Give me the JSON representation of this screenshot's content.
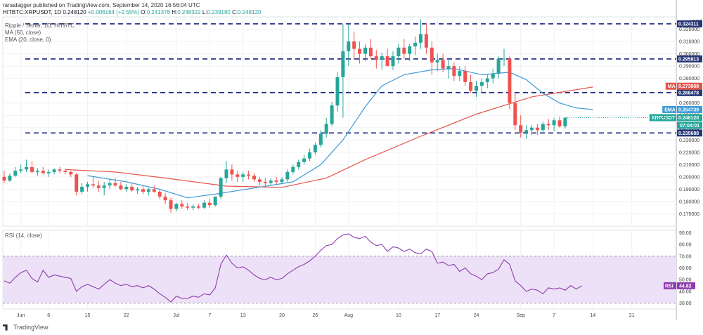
{
  "header": {
    "published": "ranadagger published on TradingView.com, September 14, 2020 16:56:04 UTC",
    "symbol": "HITBTC:XRPUSDT, 1D",
    "price": "0.248120",
    "change": "+0.006164 (+2.55%)",
    "o_label": "O:",
    "o": "0.241378",
    "h_label": "H:",
    "h": "0.248322",
    "l_label": "L:",
    "l": "0.239180",
    "c_label": "C:",
    "c": "0.248120"
  },
  "legends": {
    "title": "Ripple / Tether, 1D, HITBTC",
    "ma": "MA (50, close)",
    "ema": "EMA (20, close, 0)",
    "rsi": "RSI (14, close)"
  },
  "branding": {
    "logo_text": "TradingView"
  },
  "colors": {
    "up": "#26a69a",
    "down": "#ef5350",
    "ma": "#e5544b",
    "ema": "#3b9ad9",
    "rsi": "#8e3cae",
    "rsi_band": "#ede1f7",
    "level_line": "#1a237e",
    "tag_dark": "#263778"
  },
  "chart_data": [
    {
      "type": "candlestick",
      "title": "Ripple / Tether, 1D, HITBTC",
      "ylabel": "USDT",
      "ylim": [
        0.16,
        0.33
      ],
      "grid": true,
      "y_ticks": [
        "0.170000",
        "0.180000",
        "0.190000",
        "0.200000",
        "0.210000",
        "0.220000",
        "0.230000",
        "0.240000",
        "0.250000",
        "0.260000",
        "0.280000",
        "0.290000",
        "0.300000",
        "0.310000",
        "0.320000"
      ],
      "x_ticks": [
        {
          "label": "Jun",
          "day": 3
        },
        {
          "label": "8",
          "day": 8
        },
        {
          "label": "15",
          "day": 15
        },
        {
          "label": "22",
          "day": 22
        },
        {
          "label": "Jul",
          "day": 31
        },
        {
          "label": "7",
          "day": 37
        },
        {
          "label": "13",
          "day": 43
        },
        {
          "label": "20",
          "day": 50
        },
        {
          "label": "26",
          "day": 56
        },
        {
          "label": "Aug",
          "day": 62
        },
        {
          "label": "10",
          "day": 71
        },
        {
          "label": "17",
          "day": 78
        },
        {
          "label": "24",
          "day": 85
        },
        {
          "label": "Sep",
          "day": 93
        },
        {
          "label": "7",
          "day": 99
        },
        {
          "label": "14",
          "day": 106
        },
        {
          "label": "21",
          "day": 113
        }
      ],
      "candles": [
        [
          0.2,
          0.205,
          0.195,
          0.197
        ],
        [
          0.197,
          0.203,
          0.196,
          0.201
        ],
        [
          0.201,
          0.208,
          0.2,
          0.205
        ],
        [
          0.205,
          0.21,
          0.203,
          0.206
        ],
        [
          0.206,
          0.214,
          0.204,
          0.208
        ],
        [
          0.208,
          0.213,
          0.203,
          0.204
        ],
        [
          0.204,
          0.207,
          0.201,
          0.205
        ],
        [
          0.205,
          0.208,
          0.202,
          0.203
        ],
        [
          0.203,
          0.206,
          0.2,
          0.204
        ],
        [
          0.204,
          0.207,
          0.202,
          0.206
        ],
        [
          0.206,
          0.208,
          0.203,
          0.205
        ],
        [
          0.205,
          0.206,
          0.202,
          0.204
        ],
        [
          0.204,
          0.205,
          0.2,
          0.202
        ],
        [
          0.202,
          0.203,
          0.185,
          0.188
        ],
        [
          0.188,
          0.195,
          0.186,
          0.192
        ],
        [
          0.192,
          0.196,
          0.188,
          0.194
        ],
        [
          0.194,
          0.2,
          0.191,
          0.193
        ],
        [
          0.193,
          0.197,
          0.188,
          0.191
        ],
        [
          0.191,
          0.196,
          0.185,
          0.193
        ],
        [
          0.193,
          0.198,
          0.19,
          0.195
        ],
        [
          0.195,
          0.199,
          0.192,
          0.193
        ],
        [
          0.193,
          0.196,
          0.189,
          0.19
        ],
        [
          0.19,
          0.194,
          0.188,
          0.192
        ],
        [
          0.192,
          0.195,
          0.188,
          0.189
        ],
        [
          0.189,
          0.192,
          0.186,
          0.19
        ],
        [
          0.19,
          0.193,
          0.186,
          0.188
        ],
        [
          0.188,
          0.191,
          0.185,
          0.19
        ],
        [
          0.19,
          0.193,
          0.187,
          0.188
        ],
        [
          0.188,
          0.19,
          0.182,
          0.184
        ],
        [
          0.184,
          0.187,
          0.178,
          0.181
        ],
        [
          0.181,
          0.183,
          0.171,
          0.174
        ],
        [
          0.174,
          0.179,
          0.172,
          0.178
        ],
        [
          0.178,
          0.181,
          0.174,
          0.176
        ],
        [
          0.176,
          0.179,
          0.173,
          0.175
        ],
        [
          0.175,
          0.178,
          0.173,
          0.176
        ],
        [
          0.176,
          0.178,
          0.174,
          0.175
        ],
        [
          0.175,
          0.181,
          0.174,
          0.179
        ],
        [
          0.179,
          0.182,
          0.175,
          0.177
        ],
        [
          0.177,
          0.184,
          0.176,
          0.184
        ],
        [
          0.184,
          0.2,
          0.182,
          0.199
        ],
        [
          0.199,
          0.213,
          0.195,
          0.206
        ],
        [
          0.206,
          0.21,
          0.197,
          0.202
        ],
        [
          0.202,
          0.205,
          0.196,
          0.2
        ],
        [
          0.2,
          0.204,
          0.196,
          0.202
        ],
        [
          0.202,
          0.205,
          0.198,
          0.201
        ],
        [
          0.201,
          0.203,
          0.196,
          0.198
        ],
        [
          0.198,
          0.2,
          0.193,
          0.196
        ],
        [
          0.196,
          0.199,
          0.192,
          0.195
        ],
        [
          0.195,
          0.199,
          0.193,
          0.197
        ],
        [
          0.197,
          0.2,
          0.194,
          0.196
        ],
        [
          0.196,
          0.2,
          0.194,
          0.198
        ],
        [
          0.198,
          0.206,
          0.196,
          0.204
        ],
        [
          0.204,
          0.21,
          0.202,
          0.208
        ],
        [
          0.208,
          0.214,
          0.206,
          0.212
        ],
        [
          0.212,
          0.218,
          0.21,
          0.215
        ],
        [
          0.215,
          0.223,
          0.213,
          0.22
        ],
        [
          0.22,
          0.228,
          0.218,
          0.226
        ],
        [
          0.226,
          0.238,
          0.224,
          0.235
        ],
        [
          0.235,
          0.248,
          0.232,
          0.243
        ],
        [
          0.243,
          0.261,
          0.241,
          0.258
        ],
        [
          0.258,
          0.285,
          0.253,
          0.281
        ],
        [
          0.281,
          0.324,
          0.248,
          0.302
        ],
        [
          0.302,
          0.324,
          0.29,
          0.31
        ],
        [
          0.31,
          0.318,
          0.295,
          0.304
        ],
        [
          0.304,
          0.31,
          0.292,
          0.3
        ],
        [
          0.3,
          0.308,
          0.294,
          0.305
        ],
        [
          0.305,
          0.312,
          0.296,
          0.298
        ],
        [
          0.298,
          0.303,
          0.288,
          0.295
        ],
        [
          0.295,
          0.301,
          0.287,
          0.298
        ],
        [
          0.298,
          0.304,
          0.29,
          0.29
        ],
        [
          0.29,
          0.302,
          0.287,
          0.298
        ],
        [
          0.298,
          0.308,
          0.292,
          0.305
        ],
        [
          0.305,
          0.312,
          0.296,
          0.3
        ],
        [
          0.3,
          0.308,
          0.294,
          0.306
        ],
        [
          0.306,
          0.314,
          0.299,
          0.309
        ],
        [
          0.309,
          0.328,
          0.304,
          0.316
        ],
        [
          0.316,
          0.325,
          0.3,
          0.305
        ],
        [
          0.305,
          0.31,
          0.283,
          0.293
        ],
        [
          0.293,
          0.3,
          0.286,
          0.295
        ],
        [
          0.295,
          0.3,
          0.285,
          0.288
        ],
        [
          0.288,
          0.295,
          0.28,
          0.29
        ],
        [
          0.29,
          0.293,
          0.278,
          0.282
        ],
        [
          0.282,
          0.29,
          0.278,
          0.286
        ],
        [
          0.286,
          0.29,
          0.274,
          0.277
        ],
        [
          0.277,
          0.283,
          0.268,
          0.27
        ],
        [
          0.27,
          0.278,
          0.265,
          0.274
        ],
        [
          0.274,
          0.28,
          0.268,
          0.277
        ],
        [
          0.277,
          0.283,
          0.272,
          0.28
        ],
        [
          0.28,
          0.288,
          0.276,
          0.284
        ],
        [
          0.284,
          0.298,
          0.28,
          0.296
        ],
        [
          0.296,
          0.304,
          0.29,
          0.296
        ],
        [
          0.296,
          0.298,
          0.255,
          0.26
        ],
        [
          0.26,
          0.268,
          0.238,
          0.242
        ],
        [
          0.242,
          0.25,
          0.232,
          0.236
        ],
        [
          0.236,
          0.242,
          0.231,
          0.238
        ],
        [
          0.238,
          0.242,
          0.234,
          0.24
        ],
        [
          0.24,
          0.243,
          0.234,
          0.238
        ],
        [
          0.238,
          0.245,
          0.235,
          0.243
        ],
        [
          0.243,
          0.247,
          0.238,
          0.242
        ],
        [
          0.242,
          0.248,
          0.237,
          0.246
        ],
        [
          0.246,
          0.249,
          0.24,
          0.241
        ],
        [
          0.241,
          0.2483,
          0.2392,
          0.2481
        ]
      ],
      "ma_50": [
        [
          11,
          0.206
        ],
        [
          20,
          0.204
        ],
        [
          30,
          0.1985
        ],
        [
          40,
          0.1925
        ],
        [
          50,
          0.1915
        ],
        [
          58,
          0.199
        ],
        [
          65,
          0.214
        ],
        [
          75,
          0.233
        ],
        [
          85,
          0.251
        ],
        [
          95,
          0.265
        ],
        [
          106,
          0.273
        ]
      ],
      "ema_20": [
        [
          15,
          0.201
        ],
        [
          22,
          0.196
        ],
        [
          28,
          0.19
        ],
        [
          33,
          0.183
        ],
        [
          38,
          0.186
        ],
        [
          45,
          0.191
        ],
        [
          52,
          0.196
        ],
        [
          57,
          0.21
        ],
        [
          61,
          0.23
        ],
        [
          65,
          0.257
        ],
        [
          68,
          0.274
        ],
        [
          72,
          0.283
        ],
        [
          77,
          0.287
        ],
        [
          81,
          0.288
        ],
        [
          86,
          0.283
        ],
        [
          91,
          0.285
        ],
        [
          94,
          0.279
        ],
        [
          97,
          0.268
        ],
        [
          100,
          0.26
        ],
        [
          103,
          0.256
        ],
        [
          106,
          0.2547
        ]
      ],
      "horizontal_levels": [
        {
          "value": 0.324311,
          "label": "0.324311"
        },
        {
          "value": 0.295813,
          "label": "0.295813"
        },
        {
          "value": 0.268478,
          "label": "0.268478"
        },
        {
          "value": 0.235688,
          "label": "0.235688"
        }
      ],
      "price_tags": [
        {
          "name": "MA",
          "value": 0.273668,
          "label": "0.273668"
        },
        {
          "name": "EMA",
          "value": 0.254739,
          "label": "0.254739"
        },
        {
          "name": "XRPUSDT",
          "value": 0.24812,
          "label": "0.248120",
          "sub_label": "07:04:01"
        }
      ]
    },
    {
      "type": "line",
      "title": "RSI (14, close)",
      "ylim": [
        25,
        92
      ],
      "y_ticks": [
        "30.00",
        "40.00",
        "50.00",
        "60.00",
        "70.00",
        "80.00",
        "90.00"
      ],
      "band": [
        30,
        70
      ],
      "rsi": [
        [
          0,
          49
        ],
        [
          1,
          47
        ],
        [
          2,
          52
        ],
        [
          3,
          56
        ],
        [
          4,
          58
        ],
        [
          5,
          51
        ],
        [
          6,
          48
        ],
        [
          7,
          58
        ],
        [
          8,
          52
        ],
        [
          9,
          54
        ],
        [
          10,
          53
        ],
        [
          11,
          52
        ],
        [
          12,
          51
        ],
        [
          13,
          40
        ],
        [
          14,
          44
        ],
        [
          15,
          46
        ],
        [
          16,
          44
        ],
        [
          17,
          42
        ],
        [
          18,
          46
        ],
        [
          19,
          50
        ],
        [
          20,
          47
        ],
        [
          21,
          45
        ],
        [
          22,
          46
        ],
        [
          23,
          44
        ],
        [
          24,
          45
        ],
        [
          25,
          43
        ],
        [
          26,
          45
        ],
        [
          27,
          42
        ],
        [
          28,
          38
        ],
        [
          29,
          35
        ],
        [
          30,
          31
        ],
        [
          31,
          36
        ],
        [
          32,
          34
        ],
        [
          33,
          34
        ],
        [
          34,
          36
        ],
        [
          35,
          35
        ],
        [
          36,
          38
        ],
        [
          37,
          37
        ],
        [
          38,
          43
        ],
        [
          39,
          63
        ],
        [
          40,
          71
        ],
        [
          41,
          64
        ],
        [
          42,
          60
        ],
        [
          43,
          61
        ],
        [
          44,
          58
        ],
        [
          45,
          54
        ],
        [
          46,
          51
        ],
        [
          47,
          50
        ],
        [
          48,
          52
        ],
        [
          49,
          50
        ],
        [
          50,
          51
        ],
        [
          51,
          55
        ],
        [
          52,
          58
        ],
        [
          53,
          61
        ],
        [
          54,
          63
        ],
        [
          55,
          66
        ],
        [
          56,
          70
        ],
        [
          57,
          75
        ],
        [
          58,
          79
        ],
        [
          59,
          80
        ],
        [
          60,
          85
        ],
        [
          61,
          88
        ],
        [
          62,
          89
        ],
        [
          63,
          86
        ],
        [
          64,
          85
        ],
        [
          65,
          87
        ],
        [
          66,
          82
        ],
        [
          67,
          79
        ],
        [
          68,
          80
        ],
        [
          69,
          74
        ],
        [
          70,
          78
        ],
        [
          71,
          77
        ],
        [
          72,
          74
        ],
        [
          73,
          76
        ],
        [
          74,
          73
        ],
        [
          75,
          72
        ],
        [
          76,
          76
        ],
        [
          77,
          74
        ],
        [
          78,
          64
        ],
        [
          79,
          65
        ],
        [
          80,
          62
        ],
        [
          81,
          63
        ],
        [
          82,
          57
        ],
        [
          83,
          60
        ],
        [
          84,
          55
        ],
        [
          85,
          53
        ],
        [
          86,
          50
        ],
        [
          87,
          55
        ],
        [
          88,
          56
        ],
        [
          89,
          59
        ],
        [
          90,
          67
        ],
        [
          91,
          63
        ],
        [
          92,
          49
        ],
        [
          93,
          45
        ],
        [
          94,
          40
        ],
        [
          95,
          42
        ],
        [
          96,
          41
        ],
        [
          97,
          38
        ],
        [
          98,
          43
        ],
        [
          99,
          42
        ],
        [
          100,
          43
        ],
        [
          101,
          41
        ],
        [
          102,
          45
        ],
        [
          103,
          42
        ],
        [
          104,
          44.82
        ]
      ],
      "last_label": "44.82"
    }
  ]
}
